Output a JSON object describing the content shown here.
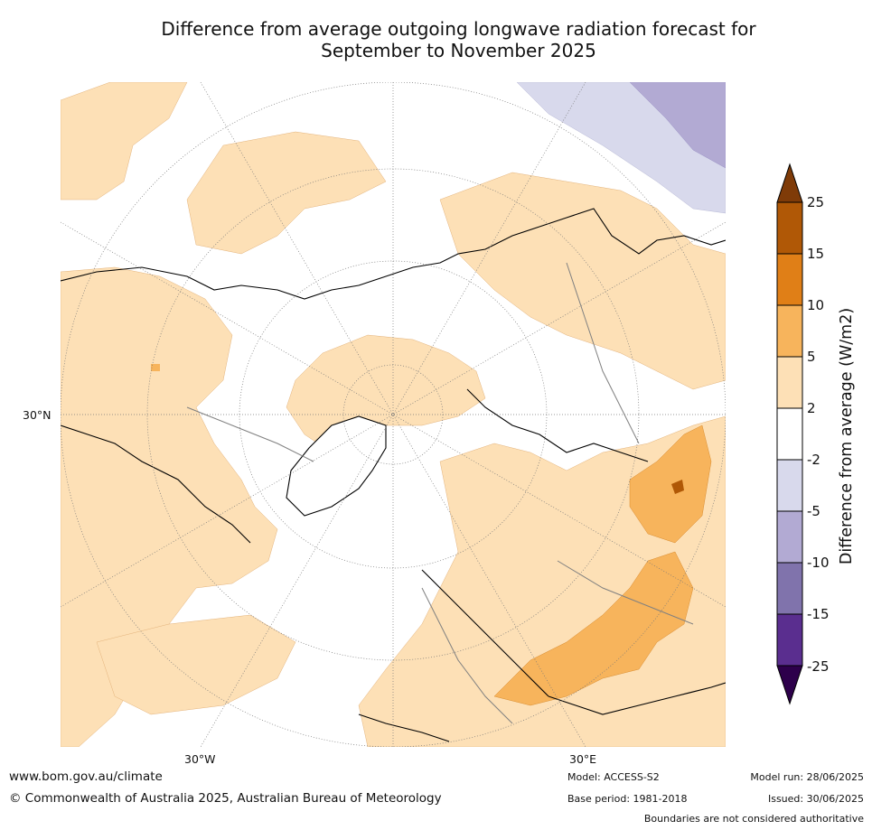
{
  "title": {
    "line1": "Difference from average outgoing longwave radiation forecast for",
    "line2": "September to November 2025"
  },
  "map": {
    "lat_labels": [
      "30°N"
    ],
    "lon_labels": [
      "30°W",
      "30°E"
    ],
    "colors": {
      "water_bg": "#ffffff",
      "pos_2_5": "#fde0b6",
      "pos_5_10": "#f7b45c",
      "pos_10_15": "#e07f17",
      "pos_15_25": "#b05806",
      "pos_gt25": "#7f3b08",
      "neg_2_5": "#d8d9ec",
      "neg_5_10": "#b2aad3",
      "neg_10_15": "#8073ac",
      "neg_15_25": "#5a2e8f",
      "neg_lt25": "#2d004b",
      "coast": "#000000",
      "borders": "#808080",
      "graticule": "#777777"
    }
  },
  "colorbar": {
    "ticks": [
      "25",
      "15",
      "10",
      "5",
      "2",
      "-2",
      "-5",
      "-10",
      "-15",
      "-25"
    ],
    "title": "Difference from average (W/m2)"
  },
  "footer": {
    "website": "www.bom.gov.au/climate",
    "copyright": "© Commonwealth of Australia 2025, Australian Bureau of Meteorology",
    "model": "Model: ACCESS-S2",
    "base_period": "Base period: 1981-2018",
    "model_run": "Model run: 28/06/2025",
    "issued": "Issued: 30/06/2025",
    "disclaimer": "Boundaries are not considered authoritative"
  }
}
